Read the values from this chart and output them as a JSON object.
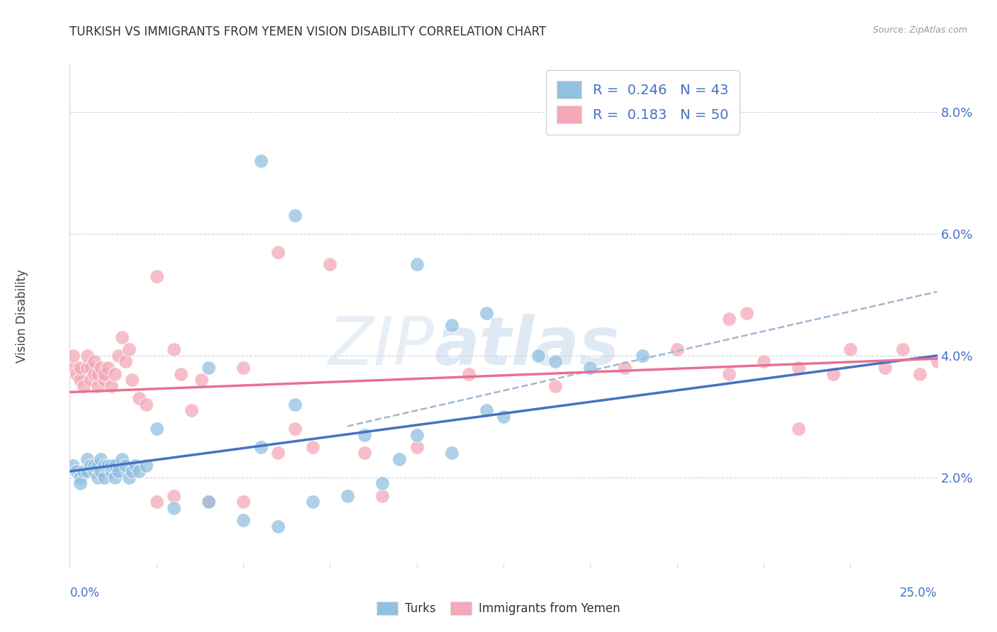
{
  "title": "TURKISH VS IMMIGRANTS FROM YEMEN VISION DISABILITY CORRELATION CHART",
  "source": "Source: ZipAtlas.com",
  "ylabel": "Vision Disability",
  "ylabel_right_ticks": [
    "2.0%",
    "4.0%",
    "6.0%",
    "8.0%"
  ],
  "ylabel_right_vals": [
    0.02,
    0.04,
    0.06,
    0.08
  ],
  "xlim": [
    0.0,
    0.25
  ],
  "ylim": [
    0.005,
    0.088
  ],
  "turks_color": "#92c0e0",
  "turks_color_line": "#4472c4",
  "turks_color_dash": "#8ab4d8",
  "yemen_color": "#f4a8b8",
  "yemen_color_line": "#e87090",
  "turks_R": "0.246",
  "turks_N": "43",
  "yemen_R": "0.183",
  "yemen_N": "50",
  "watermark_zip": "ZIP",
  "watermark_atlas": "atlas",
  "background_color": "#ffffff",
  "grid_color": "#c8d4e8",
  "turks_x": [
    0.001,
    0.002,
    0.003,
    0.003,
    0.004,
    0.005,
    0.005,
    0.006,
    0.007,
    0.007,
    0.008,
    0.008,
    0.009,
    0.009,
    0.01,
    0.01,
    0.011,
    0.012,
    0.012,
    0.013,
    0.013,
    0.014,
    0.015,
    0.016,
    0.017,
    0.018,
    0.019,
    0.02,
    0.022,
    0.025,
    0.04,
    0.055,
    0.065,
    0.085,
    0.095,
    0.11,
    0.125,
    0.14,
    0.15,
    0.165,
    0.09,
    0.1,
    0.12
  ],
  "turks_y": [
    0.022,
    0.021,
    0.02,
    0.019,
    0.021,
    0.021,
    0.023,
    0.022,
    0.021,
    0.022,
    0.02,
    0.022,
    0.021,
    0.023,
    0.02,
    0.022,
    0.022,
    0.021,
    0.022,
    0.02,
    0.022,
    0.021,
    0.023,
    0.022,
    0.02,
    0.021,
    0.022,
    0.021,
    0.022,
    0.028,
    0.038,
    0.025,
    0.032,
    0.027,
    0.023,
    0.024,
    0.03,
    0.039,
    0.038,
    0.04,
    0.019,
    0.027,
    0.031
  ],
  "yemen_x": [
    0.001,
    0.001,
    0.002,
    0.003,
    0.003,
    0.004,
    0.005,
    0.005,
    0.006,
    0.006,
    0.007,
    0.007,
    0.008,
    0.008,
    0.009,
    0.01,
    0.01,
    0.011,
    0.012,
    0.013,
    0.014,
    0.015,
    0.016,
    0.017,
    0.018,
    0.02,
    0.022,
    0.025,
    0.03,
    0.032,
    0.035,
    0.038,
    0.05,
    0.065,
    0.085,
    0.1,
    0.115,
    0.14,
    0.16,
    0.175,
    0.19,
    0.195,
    0.21,
    0.21,
    0.22,
    0.225,
    0.235,
    0.24,
    0.245,
    0.25
  ],
  "yemen_y": [
    0.038,
    0.04,
    0.037,
    0.036,
    0.038,
    0.035,
    0.038,
    0.04,
    0.036,
    0.038,
    0.037,
    0.039,
    0.035,
    0.037,
    0.038,
    0.036,
    0.037,
    0.038,
    0.035,
    0.037,
    0.04,
    0.043,
    0.039,
    0.041,
    0.036,
    0.033,
    0.032,
    0.053,
    0.041,
    0.037,
    0.031,
    0.036,
    0.038,
    0.028,
    0.024,
    0.025,
    0.037,
    0.035,
    0.038,
    0.041,
    0.037,
    0.047,
    0.038,
    0.028,
    0.037,
    0.041,
    0.038,
    0.041,
    0.037,
    0.039
  ]
}
